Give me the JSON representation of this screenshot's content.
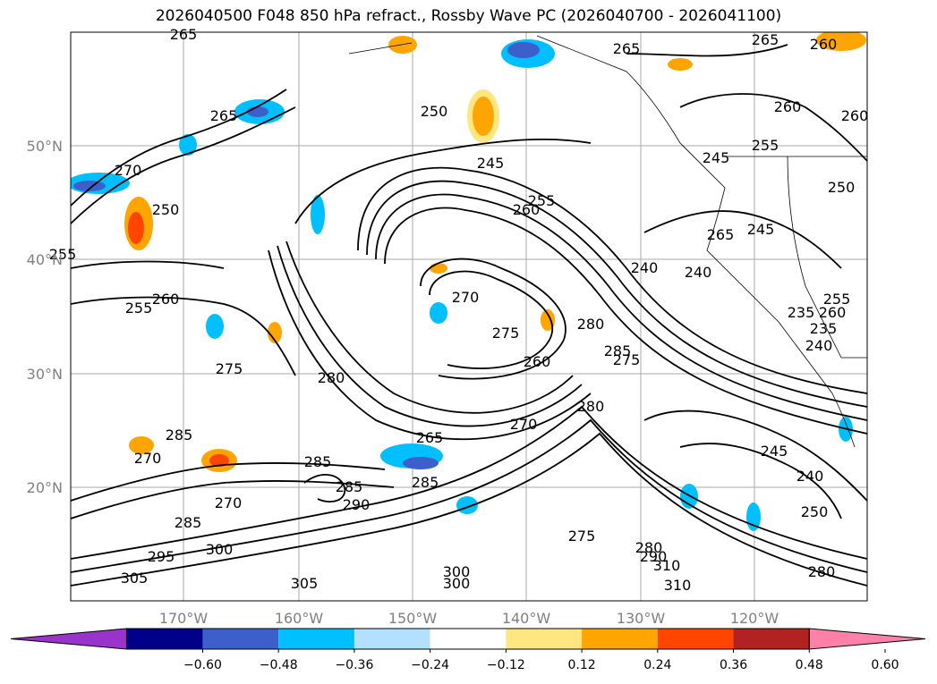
{
  "title": "2026040500 F048 850 hPa refract., Rossby Wave PC (2026040700 - 2026041100)",
  "map": {
    "lat_labels": [
      "50°N",
      "40°N",
      "30°N",
      "20°N"
    ],
    "lon_labels": [
      "170°W",
      "160°W",
      "150°W",
      "140°W",
      "130°W",
      "120°W"
    ],
    "contour_labels": [
      "265",
      "265",
      "260",
      "265",
      "250",
      "260",
      "260",
      "265",
      "255",
      "250",
      "245",
      "255",
      "245",
      "270",
      "250",
      "255",
      "255",
      "260",
      "260",
      "265",
      "240",
      "245",
      "240",
      "270",
      "275",
      "280",
      "285",
      "275",
      "260",
      "235",
      "240",
      "275",
      "280",
      "255",
      "260",
      "235",
      "285",
      "265",
      "270",
      "245",
      "280",
      "285",
      "240",
      "270",
      "285",
      "270",
      "285",
      "290",
      "285",
      "250",
      "275",
      "280",
      "300",
      "290",
      "310",
      "295",
      "300",
      "300",
      "305",
      "310",
      "305",
      "280"
    ]
  },
  "colorbar": {
    "ticks": [
      "−0.60",
      "−0.48",
      "−0.36",
      "−0.24",
      "−0.12",
      "0.12",
      "0.24",
      "0.36",
      "0.48",
      "0.60"
    ],
    "colors": [
      "#9933cc",
      "#00008b",
      "#3d5fcc",
      "#00bfff",
      "#b3e0ff",
      "#ffffff",
      "#ffe680",
      "#ffa500",
      "#ff4500",
      "#b22222",
      "#ff80a8"
    ]
  }
}
